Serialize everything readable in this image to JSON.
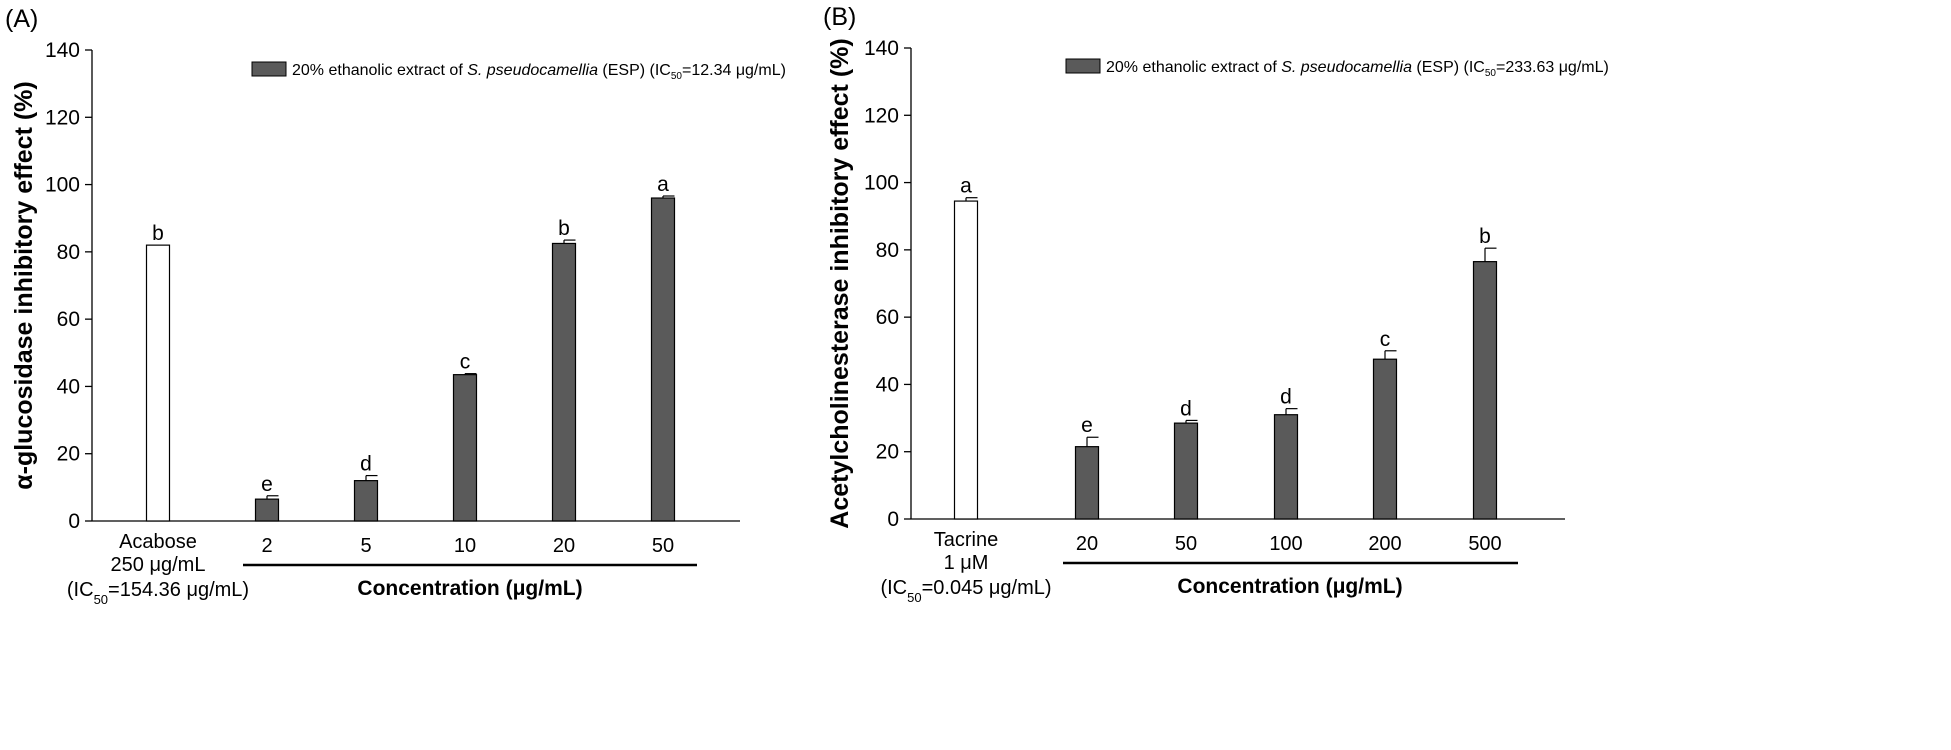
{
  "chart_data": [
    {
      "type": "bar",
      "panel": "(A)",
      "ylabel": "α-glucosidase inhibitory effect (%)",
      "xlabel": "Concentration (μg/mL)",
      "ylim": [
        0,
        140
      ],
      "yticks": [
        0,
        20,
        40,
        60,
        80,
        100,
        120,
        140
      ],
      "legend": {
        "text_before": "20% ethanolic extract of ",
        "species": "S. pseudocamellia",
        "text_mid": " (ESP) (IC",
        "sub": "50",
        "text_after": "=12.34 μg/mL)",
        "position": "top-right"
      },
      "control": {
        "label_lines": [
          "Acabose",
          "250 μg/mL",
          "(IC|50|=154.36 μg/mL)"
        ],
        "value": 82,
        "error": 0,
        "letter": "b",
        "fill": "#ffffff"
      },
      "categories": [
        "2",
        "5",
        "10",
        "20",
        "50"
      ],
      "series": [
        {
          "values": [
            6.5,
            12,
            43.5,
            82.5,
            96
          ],
          "errors": [
            1,
            1.5,
            0.3,
            1,
            0.6
          ],
          "letters": [
            "e",
            "d",
            "c",
            "b",
            "a"
          ],
          "fill": "#5a5a5a"
        }
      ]
    },
    {
      "type": "bar",
      "panel": "(B)",
      "ylabel": "Acetylcholinesterase inhibitory effect (%)",
      "xlabel": "Concentration (μg/mL)",
      "ylim": [
        0,
        140
      ],
      "yticks": [
        0,
        20,
        40,
        60,
        80,
        100,
        120,
        140
      ],
      "legend": {
        "text_before": "20% ethanolic extract of ",
        "species": "S. pseudocamellia",
        "text_mid": " (ESP) (IC",
        "sub": "50",
        "text_after": "=233.63 μg/mL)",
        "position": "top-right"
      },
      "control": {
        "label_lines": [
          "Tacrine",
          "1 μM",
          "(IC|50|=0.045 μg/mL)"
        ],
        "value": 94.5,
        "error": 1,
        "letter": "a",
        "fill": "#ffffff"
      },
      "categories": [
        "20",
        "50",
        "100",
        "200",
        "500"
      ],
      "series": [
        {
          "values": [
            21.5,
            28.5,
            31,
            47.5,
            76.5
          ],
          "errors": [
            2.8,
            0.8,
            1.8,
            2.5,
            4
          ],
          "letters": [
            "e",
            "d",
            "d",
            "c",
            "b"
          ],
          "fill": "#5a5a5a"
        }
      ]
    }
  ]
}
